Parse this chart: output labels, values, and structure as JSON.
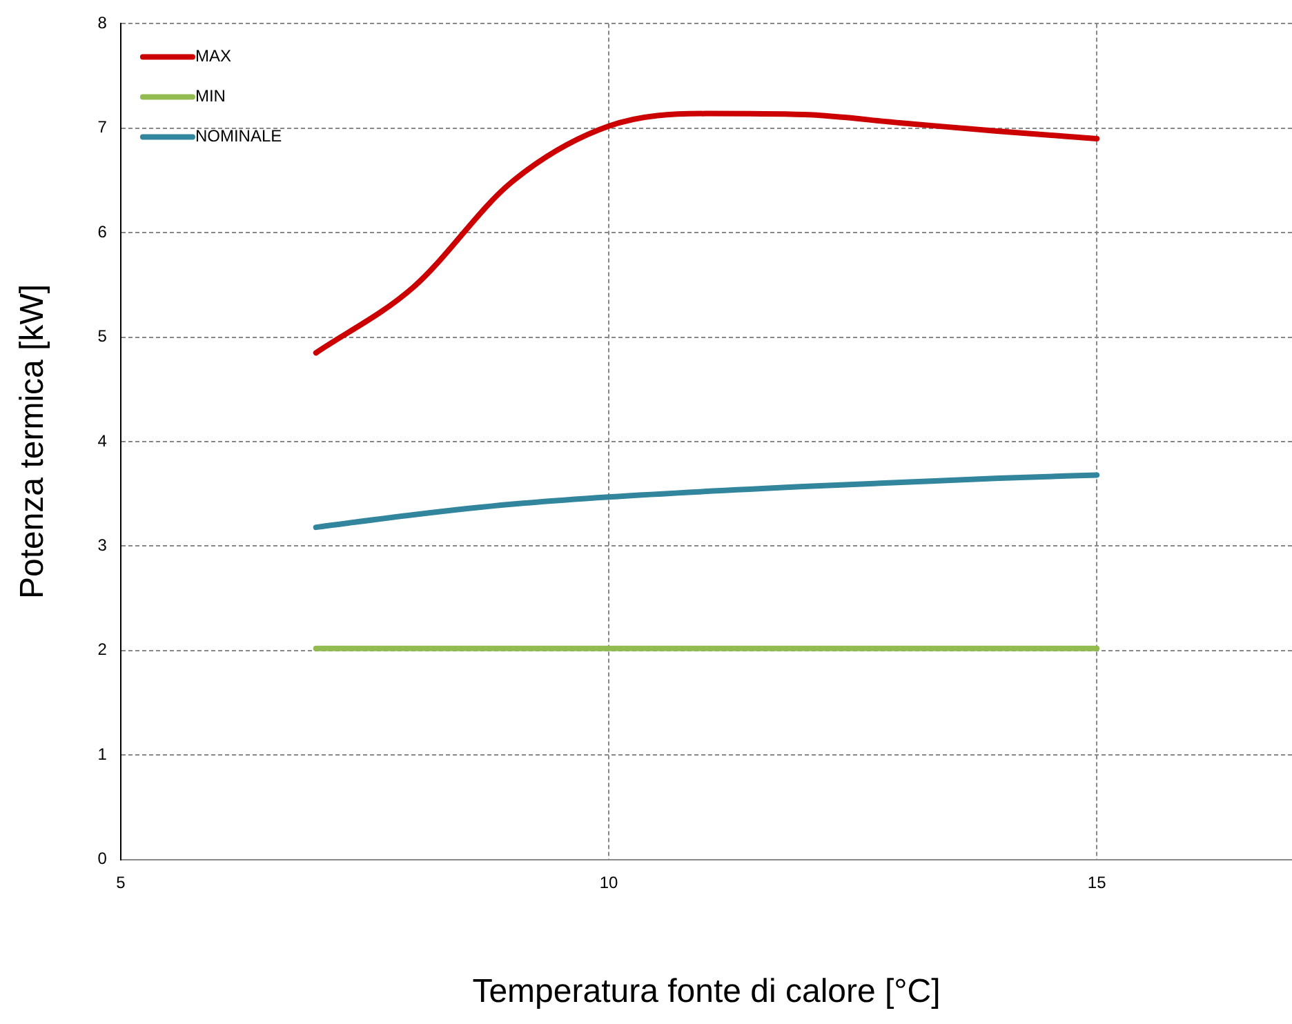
{
  "chart_data": {
    "type": "line",
    "xlabel": "Temperatura fonte di calore [°C]",
    "ylabel": "Potenza termica [kW]",
    "xlim": [
      5,
      17
    ],
    "xticks": [
      5,
      10,
      15
    ],
    "ylim": [
      0,
      8
    ],
    "yticks": [
      0,
      1,
      2,
      3,
      4,
      5,
      6,
      7,
      8
    ],
    "grid": true,
    "legend": "top left",
    "marker": "none",
    "line_style": "solid",
    "series": [
      {
        "name": "MAX",
        "color": "#cc0000",
        "x": [
          7,
          8,
          9,
          10,
          11,
          12,
          13,
          14,
          15
        ],
        "values": [
          4.85,
          5.48,
          6.48,
          7.02,
          7.14,
          7.13,
          7.05,
          6.97,
          6.9
        ]
      },
      {
        "name": "MIN",
        "color": "#92bb50",
        "x": [
          7,
          15
        ],
        "values": [
          2.02,
          2.02
        ]
      },
      {
        "name": "NOMINALE",
        "color": "#31859c",
        "x": [
          7,
          8,
          9,
          10,
          12,
          13,
          14,
          15
        ],
        "values": [
          3.18,
          3.3,
          3.4,
          3.47,
          3.57,
          3.61,
          3.65,
          3.68
        ]
      }
    ]
  }
}
